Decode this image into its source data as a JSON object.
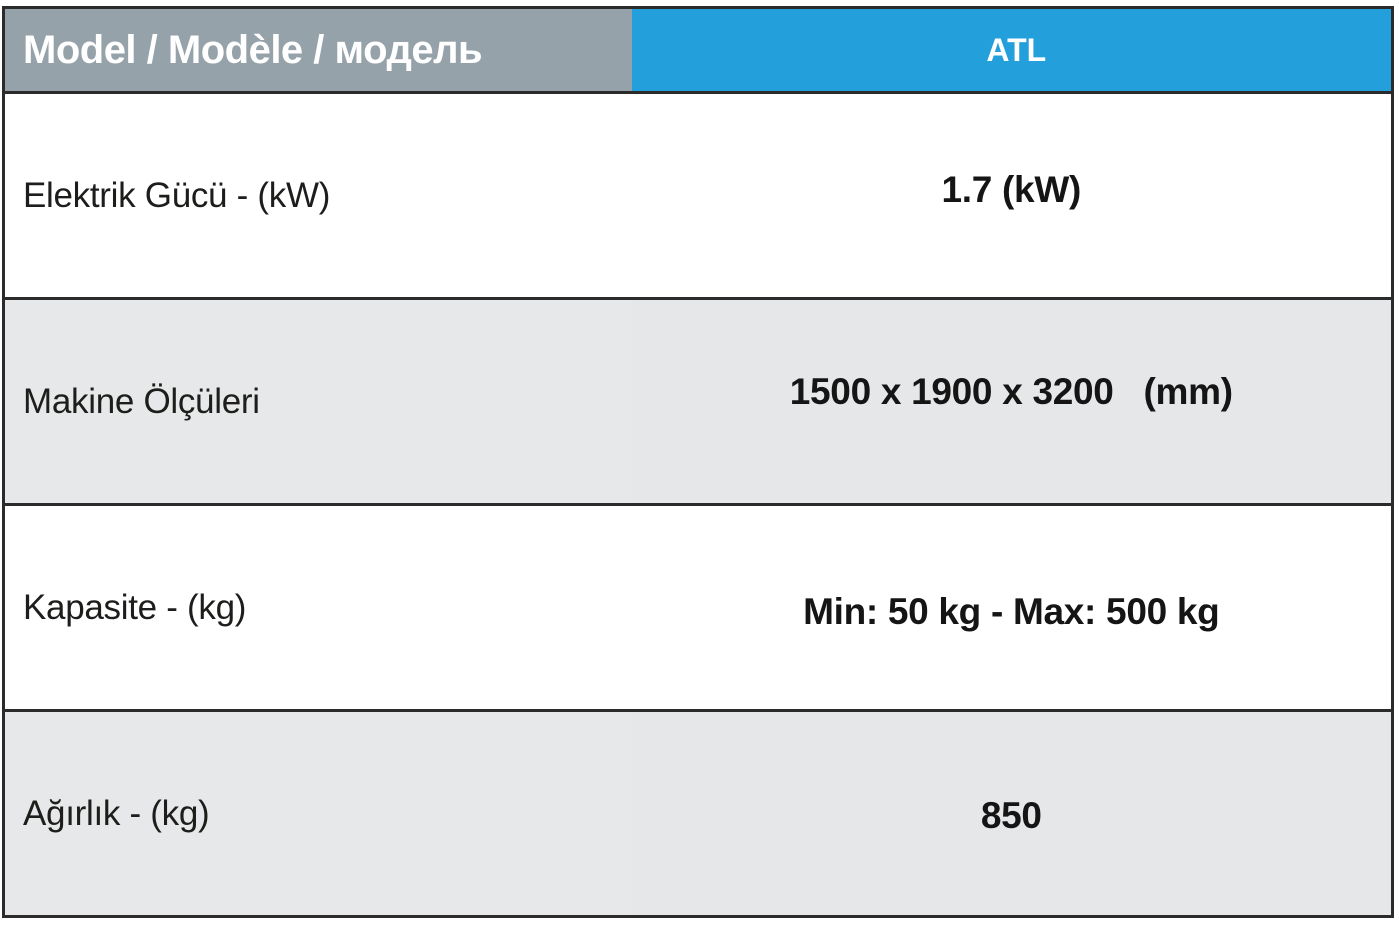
{
  "table": {
    "header": {
      "label": "Model / Modèle / модель",
      "model": "ATL"
    },
    "rows": [
      {
        "label": "Elektrik Gücü - (kW)",
        "value": "1.7 (kW)"
      },
      {
        "label": "Makine Ölçüleri",
        "value": "1500 x 1900 x 3200   (mm)"
      },
      {
        "label": "Kapasite - (kg)",
        "value": "Min: 50 kg - Max: 500 kg"
      },
      {
        "label": "Ağırlık - (kg)",
        "value": "850"
      }
    ]
  },
  "colors": {
    "header_label_bg": "#95a2a9",
    "header_model_bg": "#239fdb",
    "row_alt_bg": "#e6e7e8",
    "border": "#2b2b2b"
  }
}
